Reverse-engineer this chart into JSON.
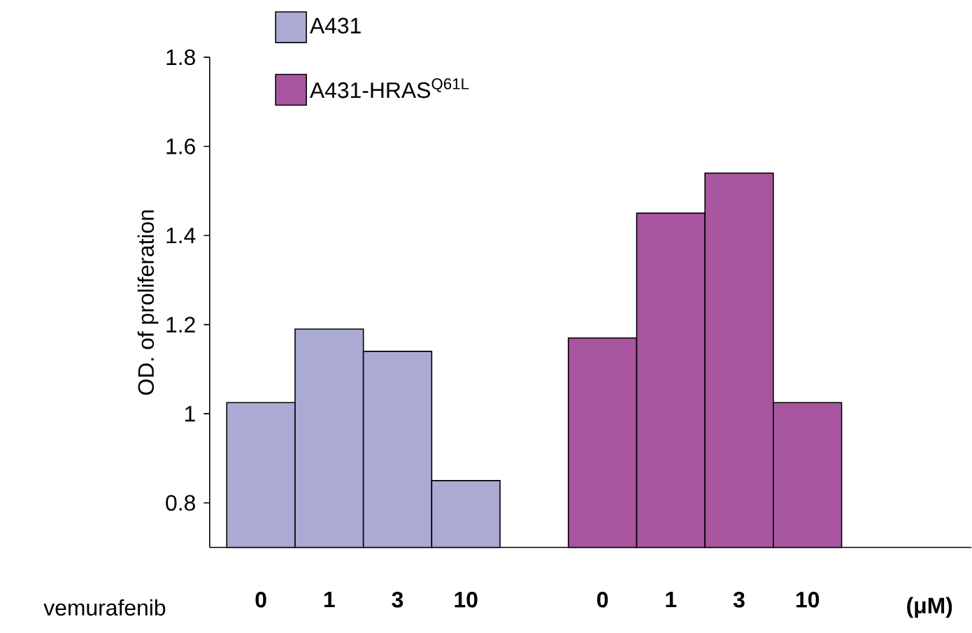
{
  "chart_data": {
    "type": "bar",
    "ylabel": "OD. of proliferation",
    "categories": [
      "0",
      "1",
      "3",
      "10",
      null,
      "0",
      "1",
      "3",
      "10"
    ],
    "series": [
      {
        "name": "A431",
        "color": "#aaaad4",
        "values": [
          1.025,
          1.19,
          1.14,
          0.85,
          null,
          null,
          null,
          null,
          null
        ]
      },
      {
        "name": "A431-HRAS$^{Q61L}$",
        "color": "#a8559f",
        "values": [
          null,
          null,
          null,
          null,
          null,
          1.17,
          1.45,
          1.54,
          1.025
        ]
      }
    ],
    "ylim": [
      0.7,
      1.8
    ],
    "yticks": [
      0.8,
      1,
      1.2,
      1.4,
      1.6,
      1.8
    ],
    "legend": "top left",
    "annotations": [
      "vemurafenib",
      "(μM)"
    ]
  }
}
